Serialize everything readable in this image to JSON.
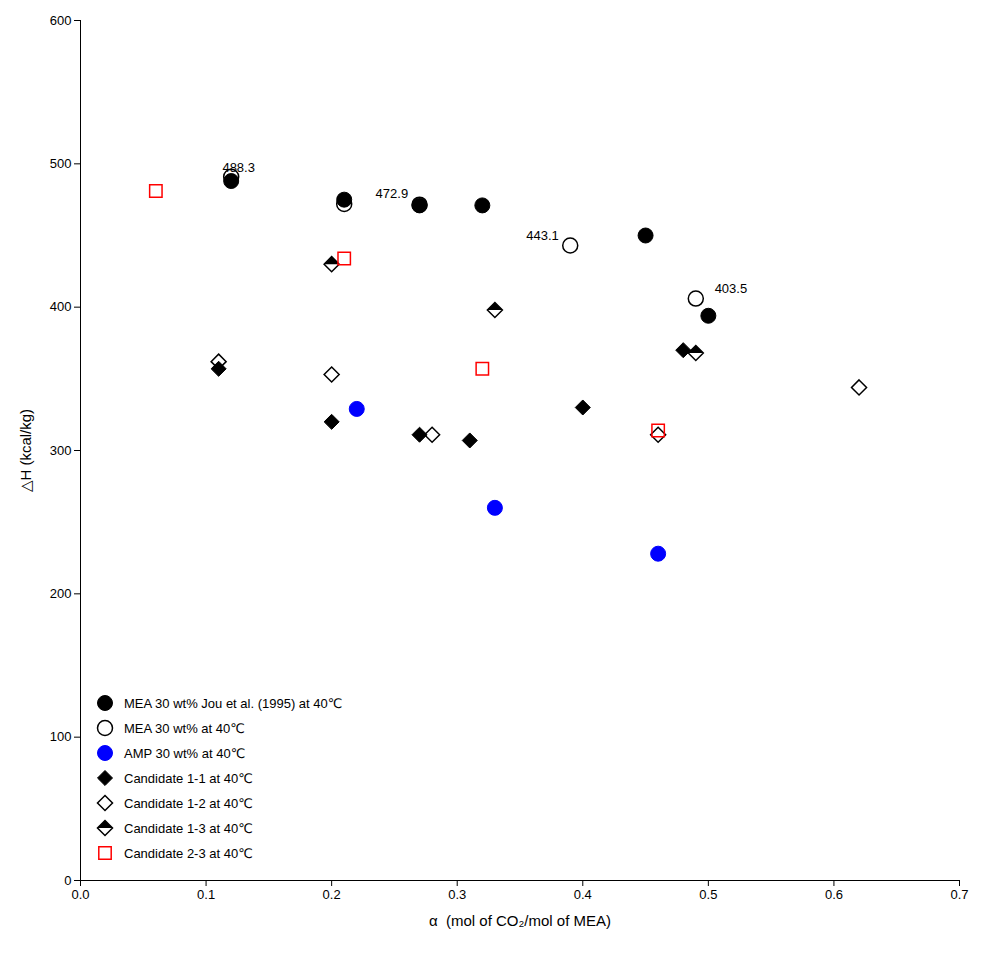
{
  "chart_data": {
    "type": "scatter",
    "xlabel": "α  (mol of CO₂/mol of MEA)",
    "ylabel": "△H (kcal/kg)",
    "xlim": [
      0.0,
      0.7
    ],
    "ylim": [
      0,
      600
    ],
    "xticks": [
      {
        "value": 0.0,
        "label": "0.0"
      },
      0.1,
      0.2,
      0.3,
      0.4,
      0.5,
      0.6,
      0.7
    ],
    "yticks": [
      0,
      100,
      200,
      300,
      400,
      500,
      600
    ],
    "grid": false,
    "legend": "lower left",
    "series": [
      {
        "name": "MEA 30 wt% Jou et al. (1995) at 40℃",
        "color": "black",
        "marker": "circle",
        "x": [
          0.12,
          0.21,
          0.27,
          0.32,
          0.45,
          0.5
        ],
        "values": [
          488.0,
          475.0,
          471.0,
          471.0,
          450.0,
          394.0
        ]
      },
      {
        "name": "MEA 30 wt% at 40℃",
        "color": "black",
        "marker": "circle-open",
        "x": [
          0.12,
          0.21,
          0.27,
          0.39,
          0.49
        ],
        "values": [
          491.0,
          472.0,
          471.5,
          443.0,
          406.0
        ]
      },
      {
        "name": "AMP 30 wt% at 40℃",
        "color": "blue",
        "marker": "circle",
        "x": [
          0.22,
          0.33,
          0.46
        ],
        "values": [
          329.0,
          260.0,
          228.0
        ]
      },
      {
        "name": "Candidate 1-1 at 40℃",
        "color": "black",
        "marker": "diamond",
        "x": [
          0.11,
          0.2,
          0.27,
          0.31,
          0.4,
          0.48
        ],
        "values": [
          357.0,
          320.0,
          311.0,
          307.0,
          330.0,
          370.0
        ]
      },
      {
        "name": "Candidate 1-2 at 40℃",
        "color": "black",
        "marker": "diamond-open",
        "x": [
          0.11,
          0.2,
          0.28,
          0.46,
          0.62
        ],
        "values": [
          362.0,
          353.0,
          311.0,
          311.0,
          344.0
        ]
      },
      {
        "name": "Candidate 1-3 at 40℃",
        "color": "black",
        "marker": "diamond-half",
        "x": [
          0.2,
          0.33,
          0.49
        ],
        "values": [
          430.0,
          398.0,
          368.0
        ]
      },
      {
        "name": "Candidate 2-3 at 40℃",
        "color": "red",
        "marker": "square-open",
        "x": [
          0.06,
          0.21,
          0.32,
          0.46
        ],
        "values": [
          481.0,
          434.0,
          357.0,
          314.0
        ]
      }
    ],
    "annotations": [
      {
        "text": "488.3",
        "x": 0.113,
        "y": 494.0
      },
      {
        "text": "472.9",
        "x": 0.235,
        "y": 476.0
      },
      {
        "text": "443.1",
        "x": 0.355,
        "y": 447.0
      },
      {
        "text": "403.5",
        "x": 0.505,
        "y": 410.0
      }
    ]
  }
}
